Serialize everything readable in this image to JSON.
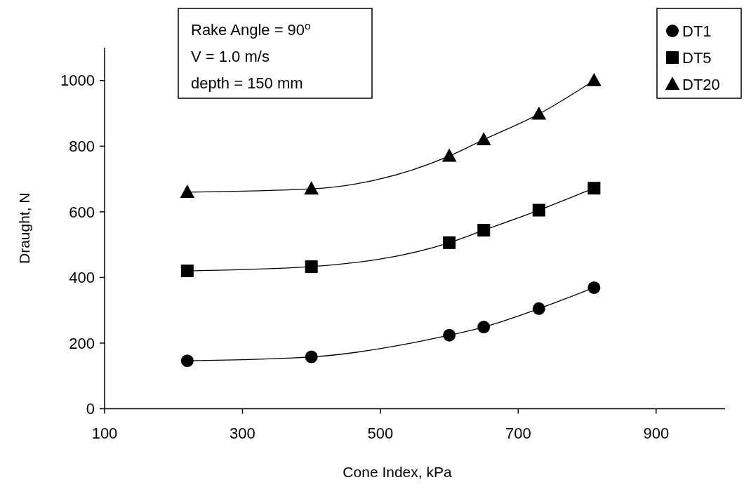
{
  "chart_data": {
    "type": "line",
    "xlabel": "Cone Index, kPa",
    "ylabel": "Draught, N",
    "x": [
      220,
      400,
      600,
      650,
      730,
      810
    ],
    "series": [
      {
        "name": "DT1",
        "color": "#000000",
        "marker": "circle",
        "values": [
          146,
          158,
          224,
          249,
          305,
          369
        ]
      },
      {
        "name": "DT5",
        "color": "#000000",
        "marker": "square",
        "values": [
          420,
          433,
          506,
          544,
          605,
          672
        ]
      },
      {
        "name": "DT20",
        "color": "#000000",
        "marker": "triangle",
        "values": [
          660,
          670,
          770,
          820,
          898,
          1000
        ]
      }
    ],
    "xlim": [
      100,
      1000
    ],
    "xticks": [
      100,
      300,
      500,
      700,
      900
    ],
    "ylim": [
      0,
      1100
    ],
    "yticks": [
      0,
      200,
      400,
      600,
      800,
      1000
    ],
    "grid": false,
    "legend": "top right",
    "annotations": [
      "Rake Angle = 90$^{o}$",
      "V = 1.0 m/s",
      "depth = 150 mm"
    ]
  }
}
